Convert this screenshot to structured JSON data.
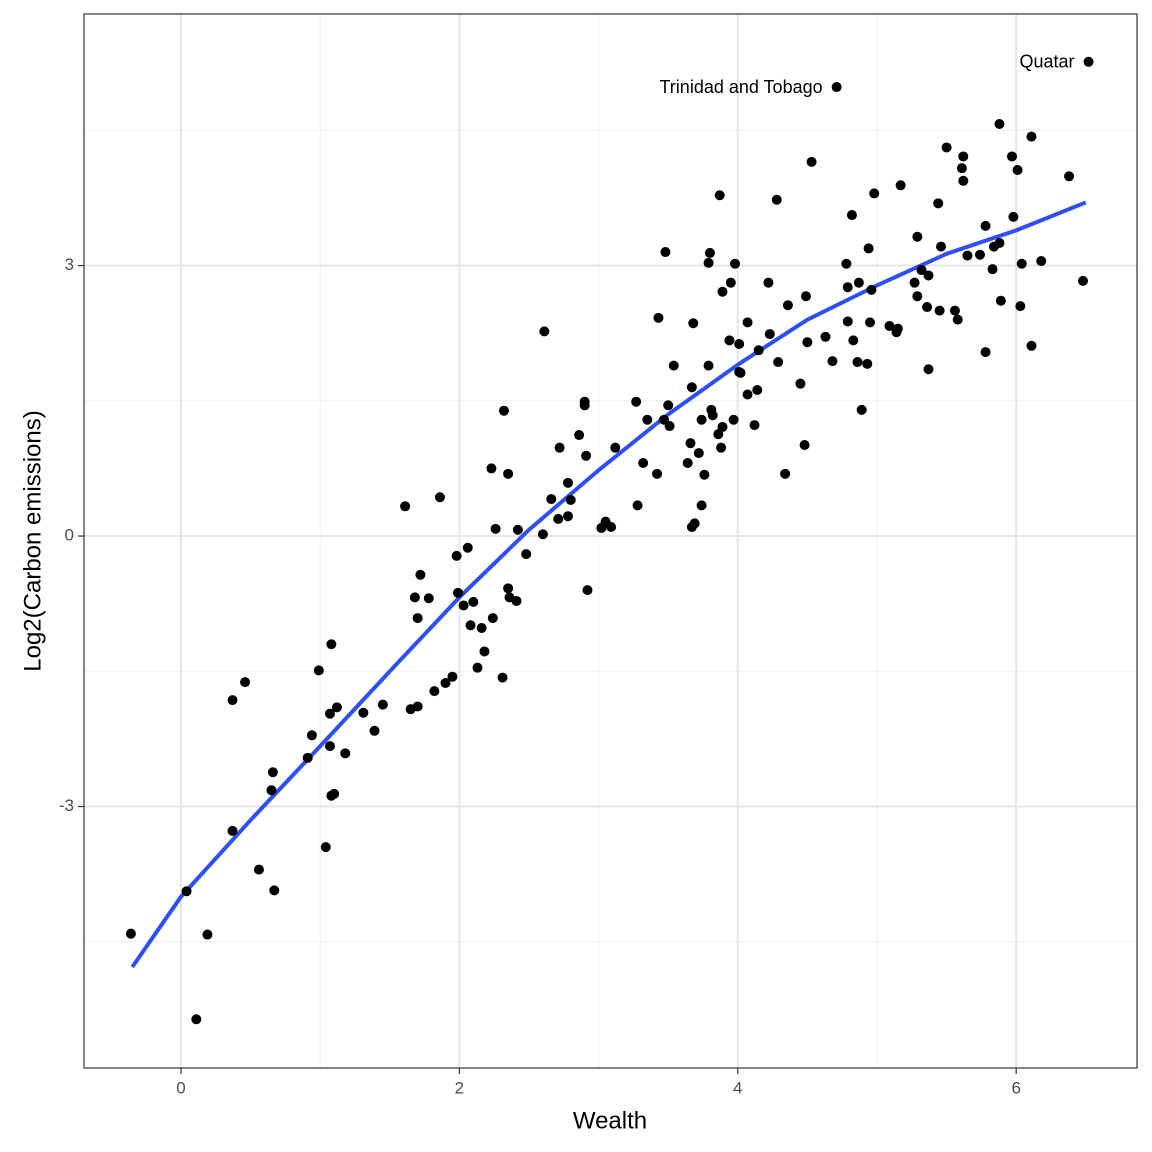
{
  "chart_data": {
    "type": "scatter",
    "x_label": "Wealth",
    "y_label": "Log2(Carbon emissions)",
    "xlim": [
      -0.697,
      6.868
    ],
    "ylim": [
      -5.9,
      5.79
    ],
    "xticks": [
      0,
      2,
      4,
      6
    ],
    "yticks": [
      -3,
      0,
      3
    ],
    "x_minor_grid": [
      1,
      3,
      5
    ],
    "y_minor_grid": [
      -4.5,
      -1.5,
      1.5,
      4.5
    ],
    "grid": true,
    "color": "#000000",
    "x": [
      -0.36,
      0.04,
      0.11,
      0.19,
      0.37,
      0.37,
      0.46,
      0.56,
      0.66,
      0.65,
      0.67,
      0.91,
      0.94,
      0.99,
      1.04,
      1.07,
      1.07,
      1.08,
      1.1,
      1.08,
      1.12,
      1.18,
      1.31,
      1.39,
      1.45,
      1.61,
      1.65,
      1.68,
      1.7,
      1.7,
      1.72,
      1.78,
      1.82,
      1.86,
      1.9,
      1.95,
      1.98,
      1.99,
      2.03,
      2.06,
      2.08,
      2.1,
      2.13,
      2.16,
      2.18,
      2.23,
      2.24,
      2.26,
      2.31,
      2.32,
      2.35,
      2.35,
      2.36,
      2.41,
      2.42,
      2.48,
      2.61,
      2.6,
      2.66,
      2.71,
      2.72,
      2.78,
      2.78,
      2.8,
      2.86,
      2.9,
      2.9,
      2.91,
      2.92,
      3.02,
      3.05,
      3.09,
      3.12,
      3.27,
      3.28,
      3.32,
      3.35,
      3.42,
      3.43,
      3.47,
      3.48,
      3.5,
      3.51,
      3.54,
      3.64,
      3.66,
      3.67,
      3.67,
      3.68,
      3.69,
      3.72,
      3.74,
      3.74,
      3.76,
      3.79,
      3.79,
      3.8,
      3.81,
      3.82,
      3.86,
      3.87,
      3.88,
      3.89,
      3.89,
      3.94,
      3.95,
      3.97,
      3.98,
      4.01,
      4.01,
      4.02,
      4.07,
      4.07,
      4.12,
      4.14,
      4.15,
      4.22,
      4.23,
      4.28,
      4.29,
      4.34,
      4.36,
      4.45,
      4.48,
      4.49,
      4.5,
      4.53,
      4.63,
      4.68,
      4.71,
      4.78,
      4.79,
      4.79,
      4.82,
      4.83,
      4.86,
      4.87,
      4.89,
      4.93,
      4.94,
      4.95,
      4.96,
      4.98,
      5.09,
      5.14,
      5.15,
      5.17,
      5.27,
      5.29,
      5.29,
      5.32,
      5.36,
      5.37,
      5.37,
      5.44,
      5.45,
      5.46,
      5.5,
      5.56,
      5.58,
      5.61,
      5.62,
      5.62,
      5.65,
      5.74,
      5.78,
      5.78,
      5.83,
      5.84,
      5.88,
      5.88,
      5.89,
      5.97,
      5.98,
      6.01,
      6.03,
      6.04,
      6.11,
      6.11,
      6.18,
      6.38,
      6.48,
      6.52
    ],
    "values": [
      -4.41,
      -3.94,
      -5.36,
      -4.42,
      -1.82,
      -3.27,
      -1.62,
      -3.7,
      -2.62,
      -2.82,
      -3.93,
      -2.46,
      -2.21,
      -1.49,
      -3.45,
      -1.97,
      -2.33,
      -2.88,
      -2.86,
      -1.2,
      -1.9,
      -2.41,
      -1.96,
      -2.16,
      -1.87,
      0.33,
      -1.92,
      -0.68,
      -1.89,
      -0.91,
      -0.43,
      -0.69,
      -1.72,
      0.43,
      -1.63,
      -1.56,
      -0.22,
      -0.63,
      -0.77,
      -0.13,
      -0.99,
      -0.73,
      -1.46,
      -1.02,
      -1.28,
      0.75,
      -0.91,
      0.08,
      -1.57,
      1.39,
      -0.58,
      0.69,
      -0.68,
      -0.72,
      0.07,
      -0.2,
      2.27,
      0.02,
      0.41,
      0.19,
      0.98,
      0.22,
      0.59,
      0.4,
      1.12,
      1.49,
      1.45,
      0.89,
      -0.6,
      0.09,
      0.16,
      0.1,
      0.98,
      1.49,
      0.34,
      0.81,
      1.29,
      0.69,
      2.42,
      1.29,
      3.15,
      1.45,
      1.22,
      1.89,
      0.81,
      1.03,
      0.1,
      1.65,
      2.36,
      0.14,
      0.92,
      0.34,
      1.29,
      0.68,
      1.89,
      3.03,
      3.14,
      1.4,
      1.34,
      1.13,
      3.78,
      0.98,
      1.21,
      2.71,
      2.17,
      2.81,
      1.29,
      3.02,
      2.13,
      1.82,
      1.81,
      1.57,
      2.37,
      1.23,
      1.62,
      2.06,
      2.81,
      2.24,
      3.73,
      1.93,
      0.69,
      2.56,
      1.69,
      1.01,
      2.66,
      2.15,
      4.15,
      2.21,
      1.94,
      4.98,
      3.02,
      2.76,
      2.38,
      3.56,
      2.17,
      1.93,
      2.81,
      1.4,
      1.91,
      3.19,
      2.37,
      2.73,
      3.8,
      2.33,
      2.26,
      2.3,
      3.89,
      2.81,
      3.32,
      2.66,
      2.95,
      2.54,
      2.89,
      1.85,
      3.69,
      2.5,
      3.21,
      4.31,
      2.5,
      2.4,
      4.08,
      4.21,
      3.94,
      3.11,
      3.12,
      3.44,
      2.04,
      2.96,
      3.21,
      4.57,
      3.25,
      2.61,
      4.21,
      3.54,
      4.06,
      2.55,
      3.02,
      4.43,
      2.11,
      3.05,
      3.99,
      2.83,
      5.26
    ],
    "fit_line": {
      "color": "#2e4ff5",
      "x": [
        -0.35,
        0,
        0.5,
        1,
        1.5,
        2,
        2.5,
        3,
        3.5,
        4,
        4.5,
        5,
        5.5,
        6,
        6.5
      ],
      "values": [
        -4.78,
        -4.0,
        -3.15,
        -2.33,
        -1.5,
        -0.68,
        0.07,
        0.73,
        1.35,
        1.9,
        2.4,
        2.78,
        3.13,
        3.39,
        3.7
      ]
    },
    "annotations": [
      {
        "text": "Trinidad and Tobago",
        "x": 4.71,
        "y": 4.98
      },
      {
        "text": "Quatar",
        "x": 6.52,
        "y": 5.26
      }
    ]
  }
}
